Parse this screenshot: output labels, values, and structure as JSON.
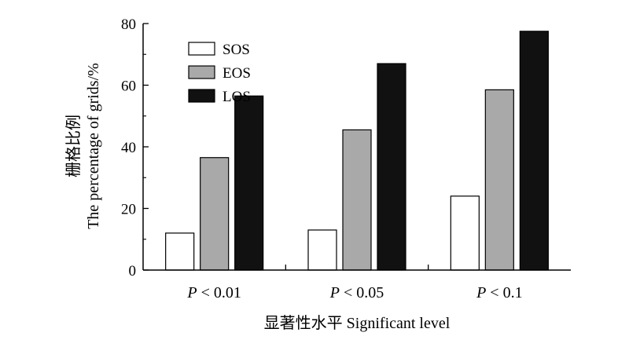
{
  "chart_data": {
    "type": "bar",
    "categories": [
      {
        "p": "P",
        "rest": " < 0.01"
      },
      {
        "p": "P",
        "rest": " < 0.05"
      },
      {
        "p": "P",
        "rest": " < 0.1"
      }
    ],
    "series": [
      {
        "name": "SOS",
        "color": "#ffffff",
        "values": [
          12,
          13,
          24
        ]
      },
      {
        "name": "EOS",
        "color": "#a9a9a9",
        "values": [
          36.5,
          45.5,
          58.5
        ]
      },
      {
        "name": "LOS",
        "color": "#111111",
        "values": [
          56.5,
          67,
          77.5
        ]
      }
    ],
    "ylabel_cn": "栅格比例",
    "ylabel_en": "The percentage of grids/%",
    "xlabel": "显著性水平 Significant level",
    "ylim": [
      0,
      80
    ],
    "yticks": [
      "0",
      "20",
      "40",
      "60",
      "80"
    ],
    "legend_position": "top-left",
    "grid": false
  }
}
